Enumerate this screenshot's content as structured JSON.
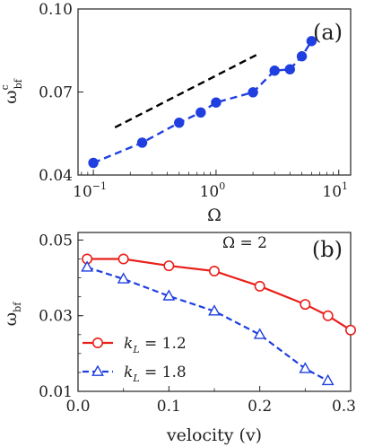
{
  "chart_data": [
    {
      "type": "line",
      "panel_label": "(a)",
      "xscale": "log",
      "xlim": [
        0.075,
        12.5
      ],
      "ylim": [
        0.04,
        0.1
      ],
      "xticks": [
        {
          "value": 0.1,
          "base": "10",
          "exp": "−1"
        },
        {
          "value": 1,
          "base": "10",
          "exp": "0"
        },
        {
          "value": 10,
          "base": "10",
          "exp": "1"
        }
      ],
      "yticks": [
        {
          "value": 0.04,
          "label": "0.04"
        },
        {
          "value": 0.07,
          "label": "0.07"
        },
        {
          "value": 0.1,
          "label": "0.10"
        }
      ],
      "xlabel": "Ω",
      "ylabel": {
        "base": "ω",
        "sup": "c",
        "sub": "bf"
      },
      "series": [
        {
          "color": "#1f3fe0",
          "dash": true,
          "marker": "filled-circle",
          "x": [
            0.1,
            0.25,
            0.5,
            0.75,
            1.0,
            2.0,
            3.0,
            4.0,
            5.0,
            6.0
          ],
          "y": [
            0.0444,
            0.0517,
            0.0589,
            0.0626,
            0.0662,
            0.0699,
            0.0777,
            0.0782,
            0.0829,
            0.0884
          ]
        },
        {
          "color": "#000000",
          "dash": true,
          "marker": "none",
          "x": [
            0.15,
            2.2
          ],
          "y": [
            0.0572,
            0.0837
          ]
        }
      ]
    },
    {
      "type": "line",
      "panel_label": "(b)",
      "annotation": "Ω = 2",
      "xlim": [
        0.0,
        0.3
      ],
      "ylim": [
        0.01,
        0.052
      ],
      "xticks": [
        {
          "value": 0.0,
          "label": "0.0"
        },
        {
          "value": 0.1,
          "label": "0.1"
        },
        {
          "value": 0.2,
          "label": "0.2"
        },
        {
          "value": 0.3,
          "label": "0.3"
        }
      ],
      "yticks": [
        {
          "value": 0.01,
          "label": "0.01"
        },
        {
          "value": 0.03,
          "label": "0.03"
        },
        {
          "value": 0.05,
          "label": "0.05"
        }
      ],
      "xlabel": "velocity (v)",
      "ylabel": {
        "base": "ω",
        "sub": "bf"
      },
      "legend_position": "bottom-left",
      "series": [
        {
          "name_base": "k",
          "name_sub": "L",
          "name_value": " = 1.2",
          "color": "#e8201a",
          "dash": false,
          "marker": "open-circle",
          "x": [
            0.01,
            0.05,
            0.1,
            0.15,
            0.2,
            0.25,
            0.275,
            0.3
          ],
          "y": [
            0.045,
            0.045,
            0.0432,
            0.0418,
            0.0378,
            0.033,
            0.03,
            0.0262
          ]
        },
        {
          "name_base": "k",
          "name_sub": "L",
          "name_value": " = 1.8",
          "color": "#1f3fe0",
          "dash": true,
          "marker": "open-triangle",
          "x": [
            0.01,
            0.05,
            0.1,
            0.15,
            0.2,
            0.25,
            0.275
          ],
          "y": [
            0.0428,
            0.0397,
            0.0352,
            0.0312,
            0.025,
            0.016,
            0.0128
          ]
        }
      ]
    }
  ]
}
